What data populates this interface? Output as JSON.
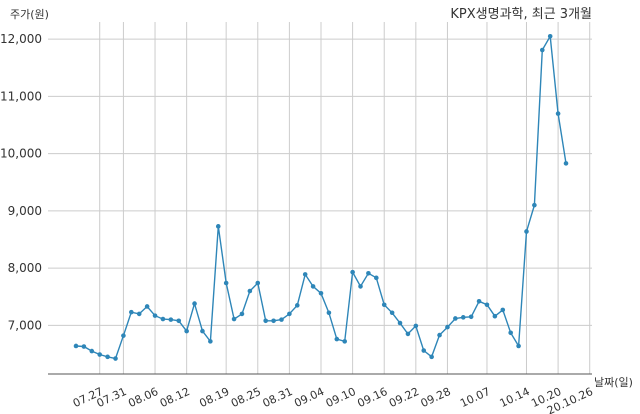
{
  "title": "KPX생명과학, 최근 3개월",
  "colors": {
    "line": "#2e86b8",
    "grid": "#cccccc",
    "axis": "#555555",
    "text": "#333333"
  },
  "chart_data": {
    "type": "line",
    "title": "KPX생명과학, 최근 3개월",
    "ylabel": "주가(원)",
    "xlabel": "날짜(일)",
    "ylim": [
      6150,
      12300
    ],
    "y_ticks": [
      7000,
      8000,
      9000,
      10000,
      11000,
      12000
    ],
    "y_tick_labels": [
      "7,000",
      "8,000",
      "9,000",
      "10,000",
      "11,000",
      "12,000"
    ],
    "x_tick_labels": [
      "07.27",
      "07.31",
      "08.06",
      "08.12",
      "08.19",
      "08.25",
      "08.31",
      "09.04",
      "09.10",
      "09.16",
      "09.22",
      "09.28",
      "10.07",
      "10.14",
      "10.20",
      "20.10.26"
    ],
    "x_tick_indices": [
      3,
      6,
      10,
      14,
      19,
      23,
      27,
      31,
      35,
      39,
      43,
      47,
      52,
      57,
      61,
      65
    ],
    "grid": true,
    "series": [
      {
        "values": [
          6640,
          6630,
          6550,
          6490,
          6450,
          6420,
          6820,
          7230,
          7200,
          7330,
          7170,
          7110,
          7100,
          7080,
          6900,
          7380,
          6900,
          6720,
          8730,
          7740,
          7110,
          7200,
          7600,
          7740,
          7080,
          7080,
          7100,
          7200,
          7350,
          7890,
          7680,
          7560,
          7220,
          6760,
          6720,
          7930,
          7680,
          7910,
          7830,
          7360,
          7220,
          7040,
          6850,
          6990,
          6560,
          6450,
          6830,
          6970,
          7120,
          7140,
          7150,
          7420,
          7360,
          7160,
          7270,
          6870,
          6640,
          8640,
          9100,
          11810,
          12050,
          10700,
          9830
        ]
      }
    ]
  }
}
